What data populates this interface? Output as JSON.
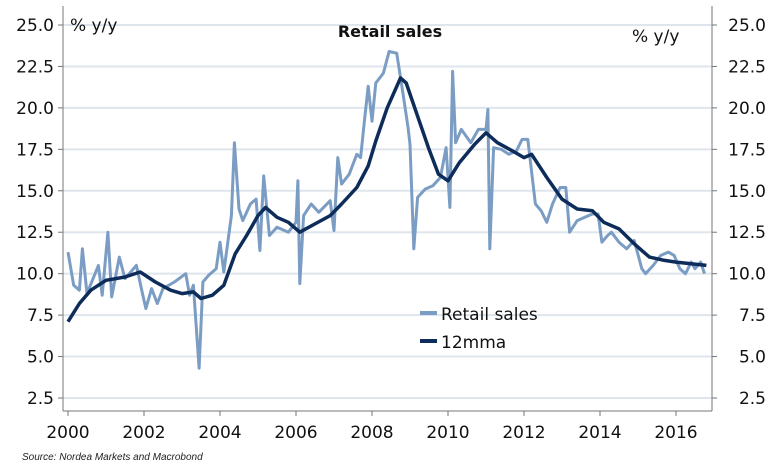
{
  "chart_data": {
    "type": "line",
    "title": "Retail sales",
    "ylabel_left": "% y/y",
    "ylabel_right": "% y/y",
    "source": "Source: Nordea Markets and Macrobond",
    "xlim": [
      2000,
      2016.9
    ],
    "ylim": [
      2.5,
      25.0
    ],
    "x_ticks": [
      "2000",
      "2002",
      "2004",
      "2006",
      "2008",
      "2010",
      "2012",
      "2014",
      "2016"
    ],
    "y_ticks": [
      "2.5",
      "5.0",
      "7.5",
      "10.0",
      "12.5",
      "15.0",
      "17.5",
      "20.0",
      "22.5",
      "25.0"
    ],
    "grid": "horizontal",
    "legend_placement": "center-bottom",
    "colors": {
      "retail": "#7b9dc4",
      "mma": "#0d2c5a",
      "grid": "#dfe5ec",
      "axis": "#777777"
    },
    "series": [
      {
        "name": "Retail sales",
        "points": [
          [
            2000.0,
            11.3
          ],
          [
            2000.15,
            9.3
          ],
          [
            2000.3,
            9.0
          ],
          [
            2000.38,
            11.5
          ],
          [
            2000.5,
            8.8
          ],
          [
            2000.8,
            10.5
          ],
          [
            2000.9,
            8.7
          ],
          [
            2001.05,
            12.5
          ],
          [
            2001.15,
            8.6
          ],
          [
            2001.35,
            11.0
          ],
          [
            2001.5,
            9.7
          ],
          [
            2001.8,
            10.5
          ],
          [
            2001.95,
            8.9
          ],
          [
            2002.05,
            7.9
          ],
          [
            2002.2,
            9.1
          ],
          [
            2002.35,
            8.2
          ],
          [
            2002.5,
            9.1
          ],
          [
            2002.8,
            9.5
          ],
          [
            2003.1,
            10.0
          ],
          [
            2003.2,
            8.7
          ],
          [
            2003.3,
            9.3
          ],
          [
            2003.45,
            4.3
          ],
          [
            2003.55,
            9.5
          ],
          [
            2003.7,
            9.9
          ],
          [
            2003.9,
            10.3
          ],
          [
            2004.0,
            11.9
          ],
          [
            2004.1,
            10.1
          ],
          [
            2004.3,
            13.5
          ],
          [
            2004.38,
            17.9
          ],
          [
            2004.5,
            13.9
          ],
          [
            2004.6,
            13.2
          ],
          [
            2004.8,
            14.2
          ],
          [
            2004.95,
            14.5
          ],
          [
            2005.05,
            11.4
          ],
          [
            2005.15,
            15.9
          ],
          [
            2005.3,
            12.3
          ],
          [
            2005.5,
            12.8
          ],
          [
            2005.8,
            12.5
          ],
          [
            2006.0,
            13.1
          ],
          [
            2006.05,
            15.6
          ],
          [
            2006.1,
            9.4
          ],
          [
            2006.2,
            13.5
          ],
          [
            2006.4,
            14.2
          ],
          [
            2006.6,
            13.7
          ],
          [
            2006.9,
            14.4
          ],
          [
            2007.0,
            12.6
          ],
          [
            2007.1,
            17.0
          ],
          [
            2007.2,
            15.4
          ],
          [
            2007.4,
            16.0
          ],
          [
            2007.6,
            17.2
          ],
          [
            2007.7,
            17.0
          ],
          [
            2007.8,
            19.2
          ],
          [
            2007.9,
            21.3
          ],
          [
            2008.0,
            19.2
          ],
          [
            2008.1,
            21.5
          ],
          [
            2008.3,
            22.1
          ],
          [
            2008.45,
            23.4
          ],
          [
            2008.65,
            23.3
          ],
          [
            2008.8,
            21.1
          ],
          [
            2008.95,
            18.8
          ],
          [
            2009.0,
            17.8
          ],
          [
            2009.1,
            11.5
          ],
          [
            2009.2,
            14.6
          ],
          [
            2009.4,
            15.1
          ],
          [
            2009.6,
            15.3
          ],
          [
            2009.8,
            15.8
          ],
          [
            2009.95,
            17.6
          ],
          [
            2010.05,
            14.0
          ],
          [
            2010.12,
            22.2
          ],
          [
            2010.2,
            17.9
          ],
          [
            2010.35,
            18.7
          ],
          [
            2010.6,
            17.9
          ],
          [
            2010.8,
            18.7
          ],
          [
            2011.0,
            18.7
          ],
          [
            2011.05,
            19.9
          ],
          [
            2011.1,
            11.5
          ],
          [
            2011.2,
            17.6
          ],
          [
            2011.4,
            17.5
          ],
          [
            2011.6,
            17.2
          ],
          [
            2011.8,
            17.4
          ],
          [
            2011.95,
            18.1
          ],
          [
            2012.1,
            18.1
          ],
          [
            2012.3,
            14.2
          ],
          [
            2012.45,
            13.8
          ],
          [
            2012.6,
            13.1
          ],
          [
            2012.75,
            14.2
          ],
          [
            2012.95,
            15.2
          ],
          [
            2013.1,
            15.2
          ],
          [
            2013.2,
            12.5
          ],
          [
            2013.4,
            13.2
          ],
          [
            2013.6,
            13.4
          ],
          [
            2013.8,
            13.6
          ],
          [
            2013.95,
            13.6
          ],
          [
            2014.05,
            11.9
          ],
          [
            2014.2,
            12.3
          ],
          [
            2014.3,
            12.5
          ],
          [
            2014.5,
            11.9
          ],
          [
            2014.7,
            11.5
          ],
          [
            2014.9,
            12.0
          ],
          [
            2015.1,
            10.3
          ],
          [
            2015.2,
            10.0
          ],
          [
            2015.4,
            10.5
          ],
          [
            2015.6,
            11.1
          ],
          [
            2015.8,
            11.3
          ],
          [
            2015.95,
            11.1
          ],
          [
            2016.1,
            10.3
          ],
          [
            2016.25,
            10.0
          ],
          [
            2016.4,
            10.7
          ],
          [
            2016.5,
            10.3
          ],
          [
            2016.65,
            10.7
          ],
          [
            2016.75,
            10.0
          ]
        ]
      },
      {
        "name": "12mma",
        "points": [
          [
            2000.0,
            7.1
          ],
          [
            2000.3,
            8.2
          ],
          [
            2000.6,
            9.0
          ],
          [
            2001.0,
            9.6
          ],
          [
            2001.5,
            9.8
          ],
          [
            2001.9,
            10.1
          ],
          [
            2002.3,
            9.5
          ],
          [
            2002.7,
            9.0
          ],
          [
            2003.0,
            8.8
          ],
          [
            2003.3,
            8.9
          ],
          [
            2003.5,
            8.5
          ],
          [
            2003.8,
            8.7
          ],
          [
            2004.1,
            9.3
          ],
          [
            2004.4,
            11.2
          ],
          [
            2004.7,
            12.3
          ],
          [
            2005.0,
            13.5
          ],
          [
            2005.2,
            14.0
          ],
          [
            2005.5,
            13.4
          ],
          [
            2005.8,
            13.1
          ],
          [
            2006.1,
            12.5
          ],
          [
            2006.5,
            13.0
          ],
          [
            2006.9,
            13.5
          ],
          [
            2007.2,
            14.2
          ],
          [
            2007.6,
            15.2
          ],
          [
            2007.9,
            16.5
          ],
          [
            2008.1,
            18.0
          ],
          [
            2008.4,
            20.0
          ],
          [
            2008.75,
            21.8
          ],
          [
            2008.9,
            21.5
          ],
          [
            2009.2,
            19.5
          ],
          [
            2009.5,
            17.5
          ],
          [
            2009.75,
            16.0
          ],
          [
            2010.0,
            15.6
          ],
          [
            2010.3,
            16.7
          ],
          [
            2010.7,
            17.8
          ],
          [
            2011.0,
            18.5
          ],
          [
            2011.3,
            17.9
          ],
          [
            2011.7,
            17.4
          ],
          [
            2012.0,
            17.0
          ],
          [
            2012.2,
            17.2
          ],
          [
            2012.6,
            15.8
          ],
          [
            2013.0,
            14.5
          ],
          [
            2013.4,
            13.9
          ],
          [
            2013.8,
            13.8
          ],
          [
            2014.1,
            13.1
          ],
          [
            2014.5,
            12.7
          ],
          [
            2014.9,
            11.8
          ],
          [
            2015.3,
            11.0
          ],
          [
            2015.7,
            10.8
          ],
          [
            2016.0,
            10.7
          ],
          [
            2016.4,
            10.6
          ],
          [
            2016.8,
            10.5
          ]
        ]
      }
    ]
  }
}
